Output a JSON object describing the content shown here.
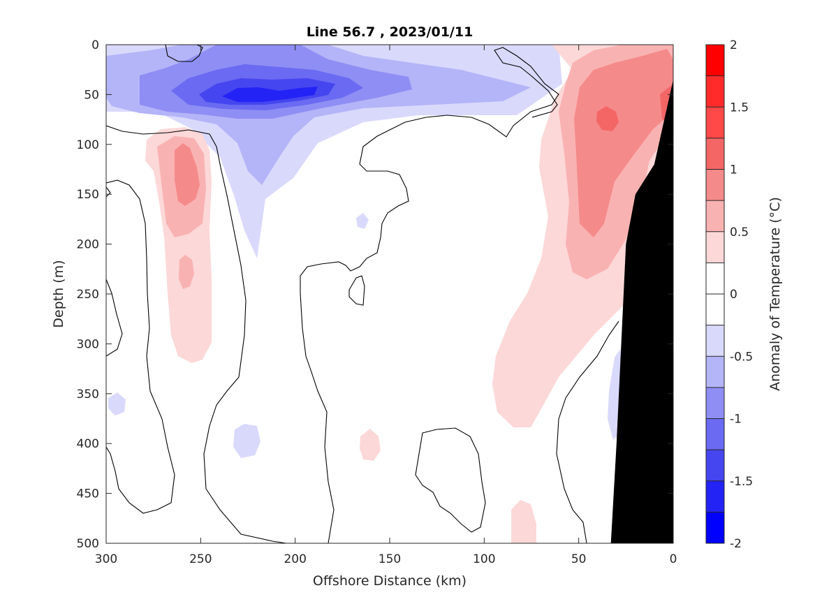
{
  "chart_data": {
    "type": "heatmap",
    "title": "Line 56.7 , 2023/01/11",
    "xlabel": "Offshore Distance (km)",
    "ylabel": "Depth (m)",
    "x_range": [
      300,
      0
    ],
    "y_range": [
      0,
      500
    ],
    "x_reversed": true,
    "y_reversed": true,
    "x_ticks": [
      300,
      250,
      200,
      150,
      100,
      50,
      0
    ],
    "y_ticks": [
      0,
      50,
      100,
      150,
      200,
      250,
      300,
      350,
      400,
      450,
      500
    ],
    "grid": false,
    "colorbar": {
      "label": "Anomaly of Temperature (°C)",
      "range": [
        -2,
        2
      ],
      "ticks": [
        2,
        1.5,
        1,
        0.5,
        0,
        -0.5,
        -1,
        -1.5,
        -2
      ],
      "tick_labels": [
        "2",
        "1.5",
        "1",
        "0.5",
        "0",
        "-0.5",
        "-1",
        "-1.5",
        "-2"
      ],
      "levels": [
        {
          "from": 1.75,
          "to": 2.0,
          "color": "#ff0000"
        },
        {
          "from": 1.5,
          "to": 1.75,
          "color": "#ff2b2b"
        },
        {
          "from": 1.25,
          "to": 1.5,
          "color": "#ff4848"
        },
        {
          "from": 1.0,
          "to": 1.25,
          "color": "#f46666"
        },
        {
          "from": 0.75,
          "to": 1.0,
          "color": "#f58a8a"
        },
        {
          "from": 0.5,
          "to": 0.75,
          "color": "#f9b2b2"
        },
        {
          "from": 0.25,
          "to": 0.5,
          "color": "#fcd8d8"
        },
        {
          "from": 0.0,
          "to": 0.25,
          "color": "#ffffff"
        },
        {
          "from": -0.25,
          "to": 0.0,
          "color": "#ffffff"
        },
        {
          "from": -0.5,
          "to": -0.25,
          "color": "#d9d9fc"
        },
        {
          "from": -0.75,
          "to": -0.5,
          "color": "#b4b4f8"
        },
        {
          "from": -1.0,
          "to": -0.75,
          "color": "#8e8ef4"
        },
        {
          "from": -1.25,
          "to": -1.0,
          "color": "#6a6af2"
        },
        {
          "from": -1.5,
          "to": -1.25,
          "color": "#4646f0"
        },
        {
          "from": -1.75,
          "to": -1.5,
          "color": "#2323f6"
        },
        {
          "from": -2.0,
          "to": -1.75,
          "color": "#0000ff"
        }
      ]
    },
    "features": [
      {
        "name": "cold-core",
        "anomaly": -1.6,
        "distance": 228,
        "depth": 50
      },
      {
        "name": "cold-lobe",
        "anomaly": -0.4,
        "distance": 215,
        "depth": 170
      },
      {
        "name": "warm-core-offshore",
        "anomaly": 0.9,
        "distance": 258,
        "depth": 135
      },
      {
        "name": "warm-tongue-offshore",
        "anomaly": 0.3,
        "distance": 258,
        "depth": 290
      },
      {
        "name": "warm-core-nearshore",
        "anomaly": 1.1,
        "distance": 37,
        "depth": 75
      },
      {
        "name": "warm-tongue-nearshore",
        "anomaly": 0.3,
        "distance": 75,
        "depth": 330
      }
    ],
    "land_mask": [
      {
        "distance": 0,
        "depth": 35
      },
      {
        "distance": 10,
        "depth": 120
      },
      {
        "distance": 20,
        "depth": 150
      },
      {
        "distance": 25,
        "depth": 200
      },
      {
        "distance": 30,
        "depth": 400
      },
      {
        "distance": 33,
        "depth": 500
      },
      {
        "distance": 0,
        "depth": 500
      }
    ]
  }
}
